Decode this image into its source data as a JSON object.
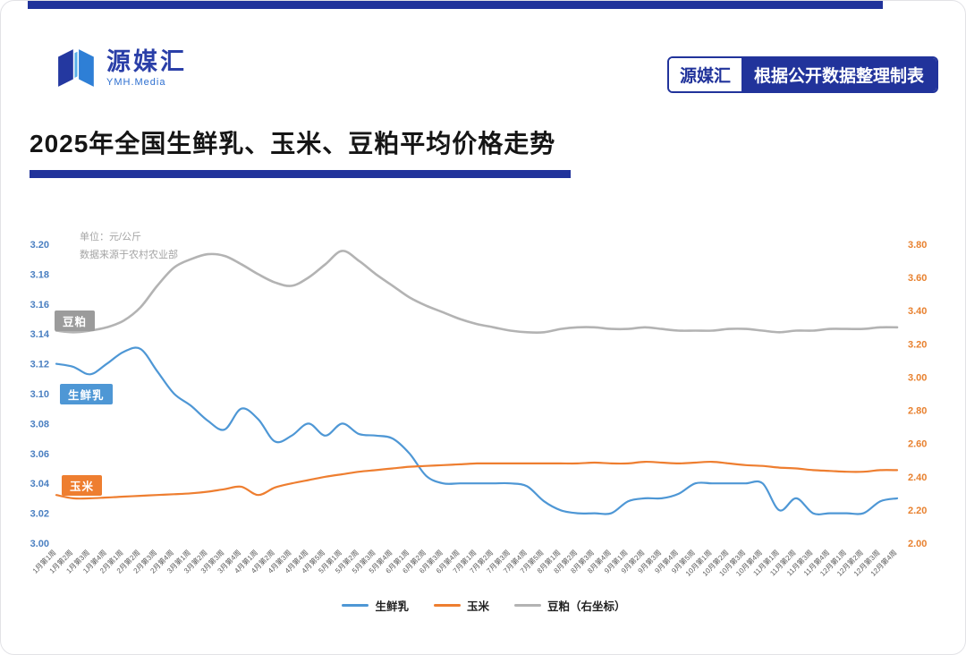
{
  "page": {
    "brand": {
      "name": "源媒汇",
      "subtitle": "YMH.Media"
    },
    "badge": {
      "left": "源媒汇",
      "right": "根据公开数据整理制表"
    },
    "title": "2025年全国生鲜乳、玉米、豆粕平均价格走势"
  },
  "colors": {
    "navy": "#21339b",
    "brand_blue": "#2a3fa8",
    "axis_left_text": "#4a7fc1",
    "axis_right_text": "#e8812f",
    "x_axis_text": "#5a5a5a",
    "note_text": "#a5a5a5"
  },
  "icons": {
    "brand_mark": "abstract-open-book-m"
  },
  "chart_data": {
    "type": "line",
    "title": "2025年全国生鲜乳、玉米、豆粕平均价格走势",
    "note_unit": "单位：元/公斤",
    "note_source": "数据来源于农村农业部",
    "grid": false,
    "legend_position": "bottom",
    "x": [
      "1月第1周",
      "1月第2周",
      "1月第3周",
      "1月第4周",
      "2月第1周",
      "2月第2周",
      "2月第3周",
      "2月第4周",
      "3月第1周",
      "3月第2周",
      "3月第3周",
      "3月第4周",
      "4月第1周",
      "4月第2周",
      "4月第3周",
      "4月第4周",
      "4月第5周",
      "5月第1周",
      "5月第2周",
      "5月第3周",
      "5月第4周",
      "6月第1周",
      "6月第2周",
      "6月第3周",
      "6月第4周",
      "7月第1周",
      "7月第2周",
      "7月第3周",
      "7月第4周",
      "7月第5周",
      "8月第1周",
      "8月第2周",
      "8月第3周",
      "8月第4周",
      "9月第1周",
      "9月第2周",
      "9月第3周",
      "9月第4周",
      "9月第5周",
      "10月第1周",
      "10月第2周",
      "10月第3周",
      "10月第4周",
      "11月第1周",
      "11月第2周",
      "11月第3周",
      "11月第4周",
      "12月第1周",
      "12月第2周",
      "12月第3周",
      "12月第4周"
    ],
    "left_axis": {
      "min": 3.0,
      "max": 3.2,
      "step": 0.02,
      "ticks": [
        "3.20",
        "3.18",
        "3.16",
        "3.14",
        "3.12",
        "3.10",
        "3.08",
        "3.06",
        "3.04",
        "3.02",
        "3.00"
      ]
    },
    "right_axis": {
      "min": 2.0,
      "max": 3.8,
      "step": 0.2,
      "ticks": [
        "3.80",
        "3.60",
        "3.40",
        "3.20",
        "3.00",
        "2.80",
        "2.60",
        "2.40",
        "2.20",
        "2.00"
      ]
    },
    "series": [
      {
        "name": "生鲜乳",
        "axis": "left",
        "color": "#4e97d5",
        "legend_label": "生鲜乳",
        "values": [
          3.12,
          3.118,
          3.113,
          3.12,
          3.128,
          3.13,
          3.115,
          3.1,
          3.092,
          3.082,
          3.076,
          3.09,
          3.083,
          3.068,
          3.072,
          3.08,
          3.072,
          3.08,
          3.073,
          3.072,
          3.07,
          3.06,
          3.045,
          3.04,
          3.04,
          3.04,
          3.04,
          3.04,
          3.038,
          3.028,
          3.022,
          3.02,
          3.02,
          3.02,
          3.028,
          3.03,
          3.03,
          3.033,
          3.04,
          3.04,
          3.04,
          3.04,
          3.04,
          3.022,
          3.03,
          3.02,
          3.02,
          3.02,
          3.02,
          3.028,
          3.03
        ]
      },
      {
        "name": "玉米",
        "axis": "right",
        "color": "#ee7e30",
        "legend_label": "玉米",
        "values": [
          2.29,
          2.27,
          2.27,
          2.275,
          2.28,
          2.285,
          2.29,
          2.295,
          2.3,
          2.31,
          2.325,
          2.34,
          2.29,
          2.335,
          2.36,
          2.38,
          2.4,
          2.415,
          2.43,
          2.44,
          2.45,
          2.46,
          2.465,
          2.47,
          2.475,
          2.48,
          2.48,
          2.48,
          2.48,
          2.48,
          2.48,
          2.48,
          2.485,
          2.48,
          2.48,
          2.49,
          2.485,
          2.48,
          2.485,
          2.49,
          2.48,
          2.47,
          2.465,
          2.455,
          2.45,
          2.44,
          2.435,
          2.43,
          2.43,
          2.44,
          2.44
        ]
      },
      {
        "name": "豆粕",
        "axis": "right",
        "color": "#b3b3b3",
        "legend_label": "豆粕（右坐标）",
        "chip_color": "#9b9b9b",
        "values": [
          3.28,
          3.27,
          3.28,
          3.3,
          3.34,
          3.42,
          3.55,
          3.66,
          3.71,
          3.74,
          3.73,
          3.68,
          3.62,
          3.57,
          3.55,
          3.6,
          3.68,
          3.76,
          3.7,
          3.62,
          3.55,
          3.48,
          3.43,
          3.39,
          3.35,
          3.32,
          3.3,
          3.28,
          3.27,
          3.27,
          3.29,
          3.3,
          3.3,
          3.29,
          3.29,
          3.3,
          3.29,
          3.28,
          3.28,
          3.28,
          3.29,
          3.29,
          3.28,
          3.27,
          3.28,
          3.28,
          3.29,
          3.29,
          3.29,
          3.3,
          3.3
        ]
      }
    ]
  }
}
